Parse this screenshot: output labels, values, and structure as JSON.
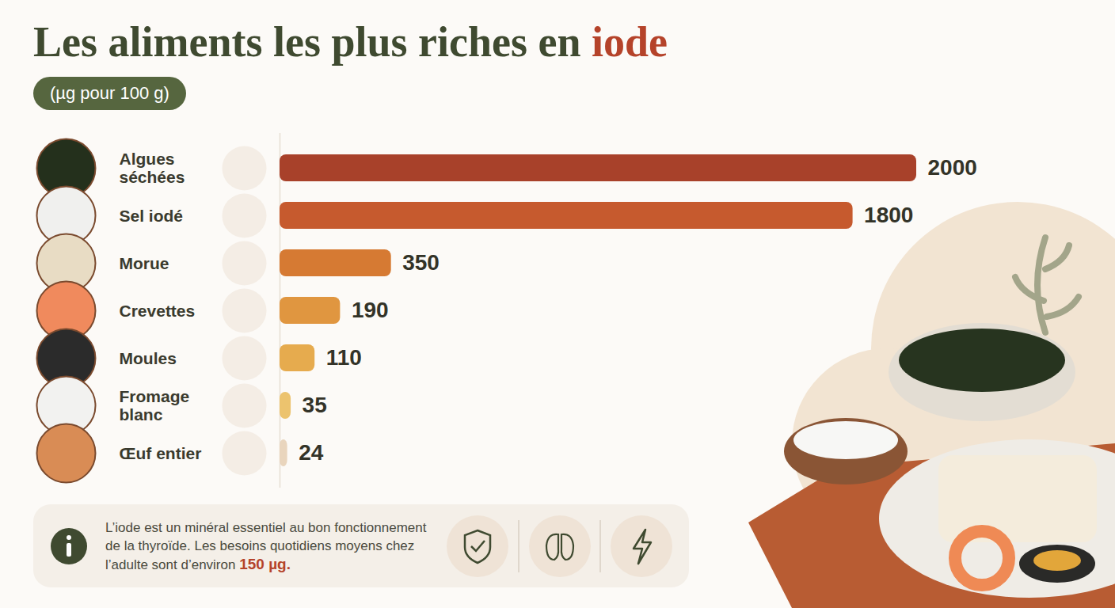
{
  "chart_data": {
    "type": "bar",
    "orientation": "horizontal",
    "title": "Les aliments les plus riches en iode",
    "subtitle": "(µg pour 100 g)",
    "categories": [
      "Algues séchées",
      "Sel iodé",
      "Morue",
      "Crevettes",
      "Moules",
      "Fromage blanc",
      "Œuf entier"
    ],
    "values": [
      2000,
      1800,
      350,
      190,
      110,
      35,
      24
    ],
    "colors": [
      "#a8412a",
      "#c65a2e",
      "#d67a33",
      "#e09640",
      "#e6ab4e",
      "#ecc36e",
      "#e9d5bd"
    ],
    "xlim": [
      0,
      2000
    ],
    "data_labels": true,
    "tick_labels": "y",
    "grid": false,
    "annotations": [
      {
        "text": "L’iode est un minéral essentiel au bon fonctionnement de la thyroïde. Les besoins quotidiens moyens chez l’adulte sont d’environ",
        "emphasis": "150 µg."
      }
    ]
  }
}
